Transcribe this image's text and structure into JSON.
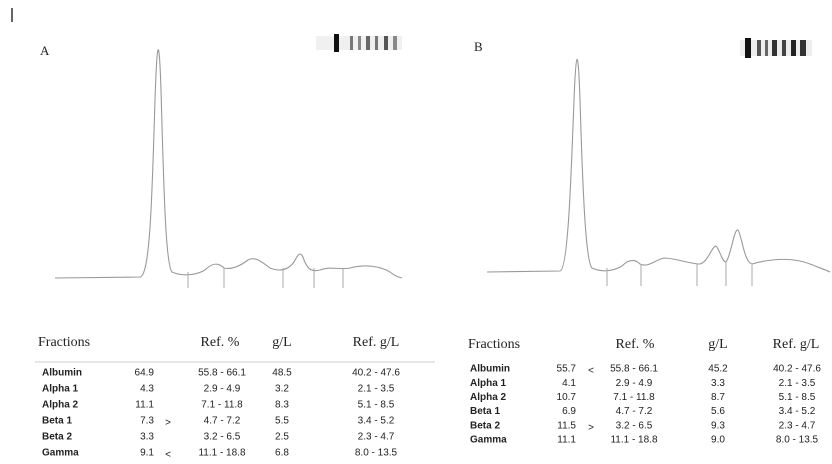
{
  "panels": [
    {
      "label": "A",
      "header": [
        "Fractions",
        "Ref. %",
        "g/L",
        "Ref. g/L"
      ],
      "rows": [
        {
          "name": "Albumin",
          "percent": "64.9",
          "ref_percent": "55.8 - 66.1",
          "gl": "48.5",
          "ref_gl": "40.2 - 47.6"
        },
        {
          "name": "Alpha 1",
          "percent": "4.3",
          "ref_percent": "2.9 - 4.9",
          "gl": "3.2",
          "ref_gl": "2.1 - 3.5"
        },
        {
          "name": "Alpha 2",
          "percent": "11.1",
          "ref_percent": "7.1 - 11.8",
          "gl": "8.3",
          "ref_gl": "5.1 - 8.5"
        },
        {
          "name": "Beta 1",
          "percent": "7.3",
          "flag": ">",
          "ref_percent": "4.7 - 7.2",
          "gl": "5.5",
          "ref_gl": "3.4 - 5.2"
        },
        {
          "name": "Beta 2",
          "percent": "3.3",
          "ref_percent": "3.2 - 6.5",
          "gl": "2.5",
          "ref_gl": "2.3 - 4.7"
        },
        {
          "name": "Gamma",
          "percent": "9.1",
          "flag": "<",
          "ref_percent": "11.1 - 18.8",
          "gl": "6.8",
          "ref_gl": "8.0 - 13.5"
        }
      ]
    },
    {
      "label": "B",
      "header": [
        "Fractions",
        "Ref. %",
        "g/L",
        "Ref. g/L"
      ],
      "rows": [
        {
          "name": "Albumin",
          "percent": "55.7",
          "flag": "<",
          "ref_percent": "55.8 - 66.1",
          "gl": "45.2",
          "ref_gl": "40.2 - 47.6"
        },
        {
          "name": "Alpha 1",
          "percent": "4.1",
          "ref_percent": "2.9 - 4.9",
          "gl": "3.3",
          "ref_gl": "2.1 - 3.5"
        },
        {
          "name": "Alpha 2",
          "percent": "10.7",
          "ref_percent": "7.1 - 11.8",
          "gl": "8.7",
          "ref_gl": "5.1 - 8.5"
        },
        {
          "name": "Beta 1",
          "percent": "6.9",
          "ref_percent": "4.7 - 7.2",
          "gl": "5.6",
          "ref_gl": "3.4 - 5.2"
        },
        {
          "name": "Beta 2",
          "percent": "11.5",
          "flag": ">",
          "ref_percent": "3.2 - 6.5",
          "gl": "9.3",
          "ref_gl": "2.3 - 4.7"
        },
        {
          "name": "Gamma",
          "percent": "11.1",
          "ref_percent": "11.1 - 18.8",
          "gl": "9.0",
          "ref_gl": "8.0 - 13.5"
        }
      ]
    }
  ]
}
